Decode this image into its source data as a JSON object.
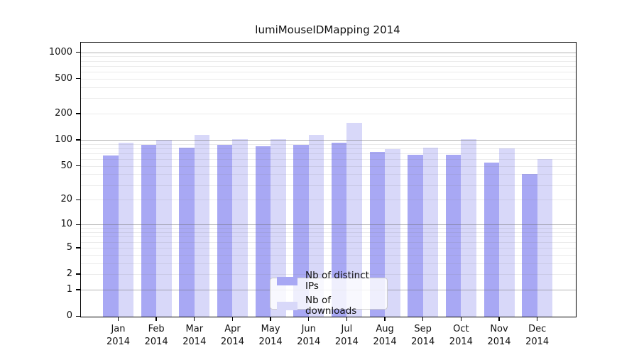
{
  "chart_data": {
    "type": "bar",
    "title": "lumiMouseIDMapping 2014",
    "categories": [
      "Jan",
      "Feb",
      "Mar",
      "Apr",
      "May",
      "Jun",
      "Jul",
      "Aug",
      "Sep",
      "Oct",
      "Nov",
      "Dec"
    ],
    "year_label": "2014",
    "series": [
      {
        "name": "Nb of distinct IPs",
        "color": "#a8a8f4",
        "values": [
          66,
          88,
          81,
          88,
          84,
          88,
          93,
          72,
          67,
          67,
          55,
          40
        ]
      },
      {
        "name": "Nb of downloads",
        "color": "#d8d8f9",
        "values": [
          93,
          100,
          115,
          101,
          102,
          113,
          157,
          79,
          82,
          101,
          80,
          60
        ]
      }
    ],
    "y_ticks": [
      0,
      1,
      2,
      5,
      10,
      20,
      50,
      100,
      200,
      500,
      1000
    ],
    "y_scale": "log10(value+1)",
    "ylim": [
      0,
      1300
    ],
    "grid": true,
    "grid_major_at": [
      1,
      10,
      100,
      1000
    ],
    "legend_position": "bottom-center",
    "colors": {
      "bar_distinct_ips": "#a8a8f4",
      "bar_downloads": "#d8d8f9",
      "grid_major": "#6e6e6e",
      "grid_minor": "#dcdcdc",
      "spine": "#000000",
      "legend_border": "#cbcbcb"
    }
  }
}
